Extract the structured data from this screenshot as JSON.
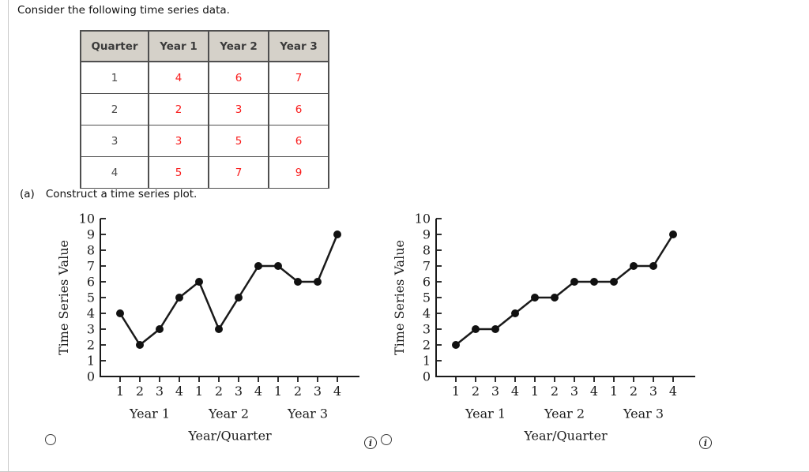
{
  "page": {
    "title": "Consider the following time series data.",
    "part_a_label": "(a)",
    "part_a_text": "Construct a time series plot."
  },
  "table": {
    "headers": [
      "Quarter",
      "Year 1",
      "Year 2",
      "Year 3"
    ],
    "rows": [
      [
        "1",
        "4",
        "6",
        "7"
      ],
      [
        "2",
        "2",
        "3",
        "6"
      ],
      [
        "3",
        "3",
        "5",
        "6"
      ],
      [
        "4",
        "5",
        "7",
        "9"
      ]
    ]
  },
  "colors": {
    "table_value_red": "#f91d1d",
    "table_header_bg": "#d5d1c9",
    "table_border": "#4f4f4f",
    "axis_black": "#1a1a1a",
    "page_border_gray": "#c9c9c9"
  },
  "chart_data": [
    {
      "type": "line",
      "title": "",
      "x_tick_labels": [
        "1",
        "2",
        "3",
        "4",
        "1",
        "2",
        "3",
        "4",
        "1",
        "2",
        "3",
        "4"
      ],
      "group_labels": [
        "Year 1",
        "Year 2",
        "Year 3"
      ],
      "values": [
        4,
        2,
        3,
        5,
        6,
        3,
        5,
        7,
        7,
        6,
        6,
        9
      ],
      "xlabel": "Year/Quarter",
      "ylabel": "Time Series Value",
      "ylim": [
        0,
        10
      ],
      "y_ticks": [
        0,
        1,
        2,
        3,
        4,
        5,
        6,
        7,
        8,
        9,
        10
      ],
      "grid": false,
      "legend": "none",
      "marker": "filled-circle",
      "line_color": "#1a1a1a"
    },
    {
      "type": "line",
      "title": "",
      "x_tick_labels": [
        "1",
        "2",
        "3",
        "4",
        "1",
        "2",
        "3",
        "4",
        "1",
        "2",
        "3",
        "4"
      ],
      "group_labels": [
        "Year 1",
        "Year 2",
        "Year 3"
      ],
      "values": [
        2,
        3,
        3,
        4,
        5,
        5,
        6,
        6,
        6,
        7,
        7,
        9
      ],
      "xlabel": "Year/Quarter",
      "ylabel": "Time Series Value",
      "ylim": [
        0,
        10
      ],
      "y_ticks": [
        0,
        1,
        2,
        3,
        4,
        5,
        6,
        7,
        8,
        9,
        10
      ],
      "grid": false,
      "legend": "none",
      "marker": "filled-circle",
      "line_color": "#1a1a1a"
    }
  ],
  "options": [
    {
      "selected": false,
      "info_icon": "i"
    },
    {
      "selected": false,
      "info_icon": "i"
    }
  ]
}
